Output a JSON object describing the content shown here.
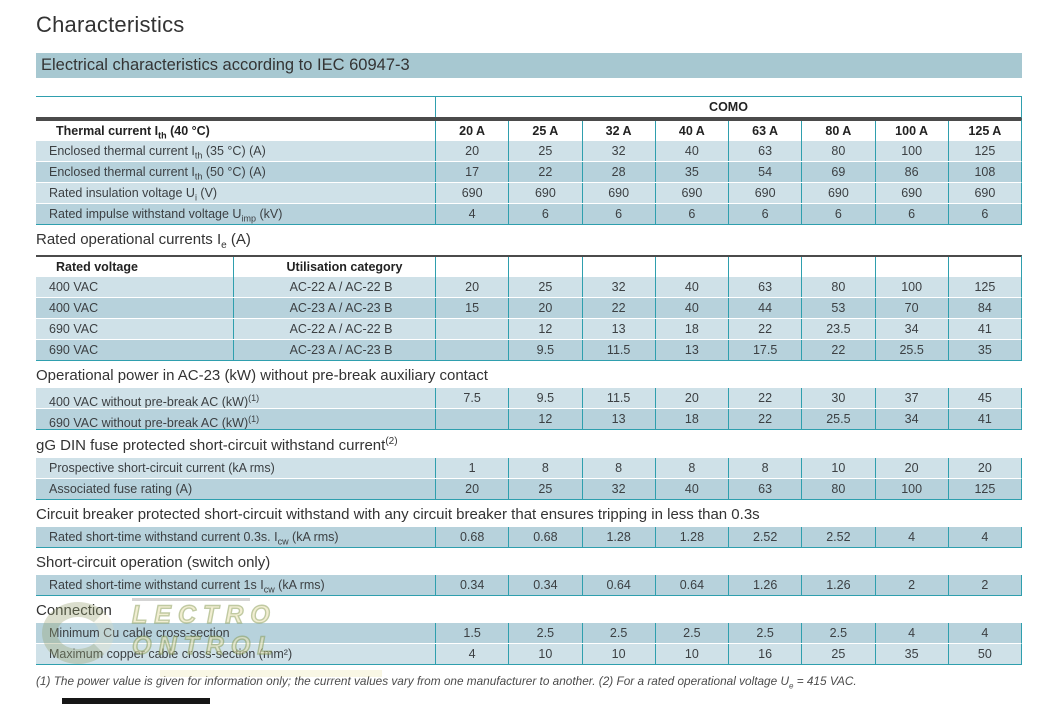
{
  "page": {
    "title": "Characteristics",
    "section_bar": "Electrical characteristics according to IEC 60947-3",
    "footnote": "(1) The power value is given for information only; the current values vary from one manufacturer to another. (2) For a rated operational voltage U<sub>e</sub> = 415 VAC."
  },
  "colors": {
    "accent_teal": "#2f9fae",
    "row_light": "#cfe1e8",
    "row_dark": "#b7d2dc",
    "section_bar_bg": "#a7c8d1",
    "header_rule": "#4b4b4b"
  },
  "table": {
    "brand": "COMO",
    "columns": [
      "20 A",
      "25 A",
      "32 A",
      "40 A",
      "63 A",
      "80 A",
      "100 A",
      "125 A"
    ],
    "blocks": [
      {
        "type": "table",
        "header": {
          "labels": [
            "Thermal current I<sub>th</sub> (40 °C)"
          ],
          "cols": "columns"
        },
        "rows": [
          {
            "labels": [
              "Enclosed thermal current I<sub>th</sub> (35 °C) (A)"
            ],
            "values": [
              "20",
              "25",
              "32",
              "40",
              "63",
              "80",
              "100",
              "125"
            ]
          },
          {
            "labels": [
              "Enclosed thermal current I<sub>th</sub> (50 °C) (A)"
            ],
            "values": [
              "17",
              "22",
              "28",
              "35",
              "54",
              "69",
              "86",
              "108"
            ]
          },
          {
            "labels": [
              "Rated insulation voltage U<sub>i</sub> (V)"
            ],
            "values": [
              "690",
              "690",
              "690",
              "690",
              "690",
              "690",
              "690",
              "690"
            ]
          },
          {
            "labels": [
              "Rated impulse withstand voltage U<sub>imp</sub> (kV)"
            ],
            "values": [
              "4",
              "6",
              "6",
              "6",
              "6",
              "6",
              "6",
              "6"
            ]
          }
        ]
      },
      {
        "type": "section",
        "title": "Rated operational currents I<sub>e</sub> (A)"
      },
      {
        "type": "table",
        "header": {
          "labels": [
            "Rated voltage",
            "Utilisation category"
          ],
          "cols": "empty"
        },
        "rows": [
          {
            "labels": [
              "400 VAC",
              "AC-22 A / AC-22 B"
            ],
            "values": [
              "20",
              "25",
              "32",
              "40",
              "63",
              "80",
              "100",
              "125"
            ]
          },
          {
            "labels": [
              "400 VAC",
              "AC-23 A / AC-23 B"
            ],
            "values": [
              "15",
              "20",
              "22",
              "40",
              "44",
              "53",
              "70",
              "84"
            ]
          },
          {
            "labels": [
              "690 VAC",
              "AC-22 A / AC-22 B"
            ],
            "values": [
              "",
              "12",
              "13",
              "18",
              "22",
              "23.5",
              "34",
              "41"
            ]
          },
          {
            "labels": [
              "690 VAC",
              "AC-23 A / AC-23 B"
            ],
            "values": [
              "",
              "9.5",
              "11.5",
              "13",
              "17.5",
              "22",
              "25.5",
              "35"
            ]
          }
        ]
      },
      {
        "type": "section",
        "title": "Operational power in AC-23 (kW) without pre-break auxiliary contact"
      },
      {
        "type": "table",
        "rows": [
          {
            "labels": [
              "400 VAC without pre-break AC (kW)<sup>(1)</sup>"
            ],
            "values": [
              "7.5",
              "9.5",
              "11.5",
              "20",
              "22",
              "30",
              "37",
              "45"
            ]
          },
          {
            "labels": [
              "690 VAC without pre-break AC (kW)<sup>(1)</sup>"
            ],
            "values": [
              "",
              "12",
              "13",
              "18",
              "22",
              "25.5",
              "34",
              "41"
            ]
          }
        ]
      },
      {
        "type": "section",
        "title": "gG DIN fuse protected short-circuit withstand current<sup>(2)</sup>"
      },
      {
        "type": "table",
        "rows": [
          {
            "labels": [
              "Prospective short-circuit current (kA rms)"
            ],
            "values": [
              "1",
              "8",
              "8",
              "8",
              "8",
              "10",
              "20",
              "20"
            ]
          },
          {
            "labels": [
              "Associated fuse rating (A)"
            ],
            "values": [
              "20",
              "25",
              "32",
              "40",
              "63",
              "80",
              "100",
              "125"
            ]
          }
        ]
      },
      {
        "type": "section",
        "title": "Circuit breaker protected short-circuit withstand with any circuit breaker that ensures tripping in less than 0.3s"
      },
      {
        "type": "table",
        "alt": "dark",
        "rows": [
          {
            "labels": [
              "Rated short-time withstand current 0.3s. I<sub>cw</sub> (kA rms)"
            ],
            "values": [
              "0.68",
              "0.68",
              "1.28",
              "1.28",
              "2.52",
              "2.52",
              "4",
              "4"
            ]
          }
        ]
      },
      {
        "type": "section",
        "title": "Short-circuit operation (switch only)"
      },
      {
        "type": "table",
        "alt": "dark",
        "rows": [
          {
            "labels": [
              "Rated short-time withstand current 1s I<sub>cw</sub> (kA rms)"
            ],
            "values": [
              "0.34",
              "0.34",
              "0.64",
              "0.64",
              "1.26",
              "1.26",
              "2",
              "2"
            ]
          }
        ]
      },
      {
        "type": "section",
        "title": "Connection"
      },
      {
        "type": "table",
        "alt": "dark",
        "rows": [
          {
            "labels": [
              "Minimum Cu cable cross-section"
            ],
            "values": [
              "1.5",
              "2.5",
              "2.5",
              "2.5",
              "2.5",
              "2.5",
              "4",
              "4"
            ]
          },
          {
            "labels": [
              "Maximum copper cable cross-section (mm²)"
            ],
            "values": [
              "4",
              "10",
              "10",
              "10",
              "16",
              "25",
              "35",
              "50"
            ]
          }
        ]
      }
    ]
  },
  "watermark": {
    "line1": "LECTRO",
    "line2": "ONTROL"
  }
}
